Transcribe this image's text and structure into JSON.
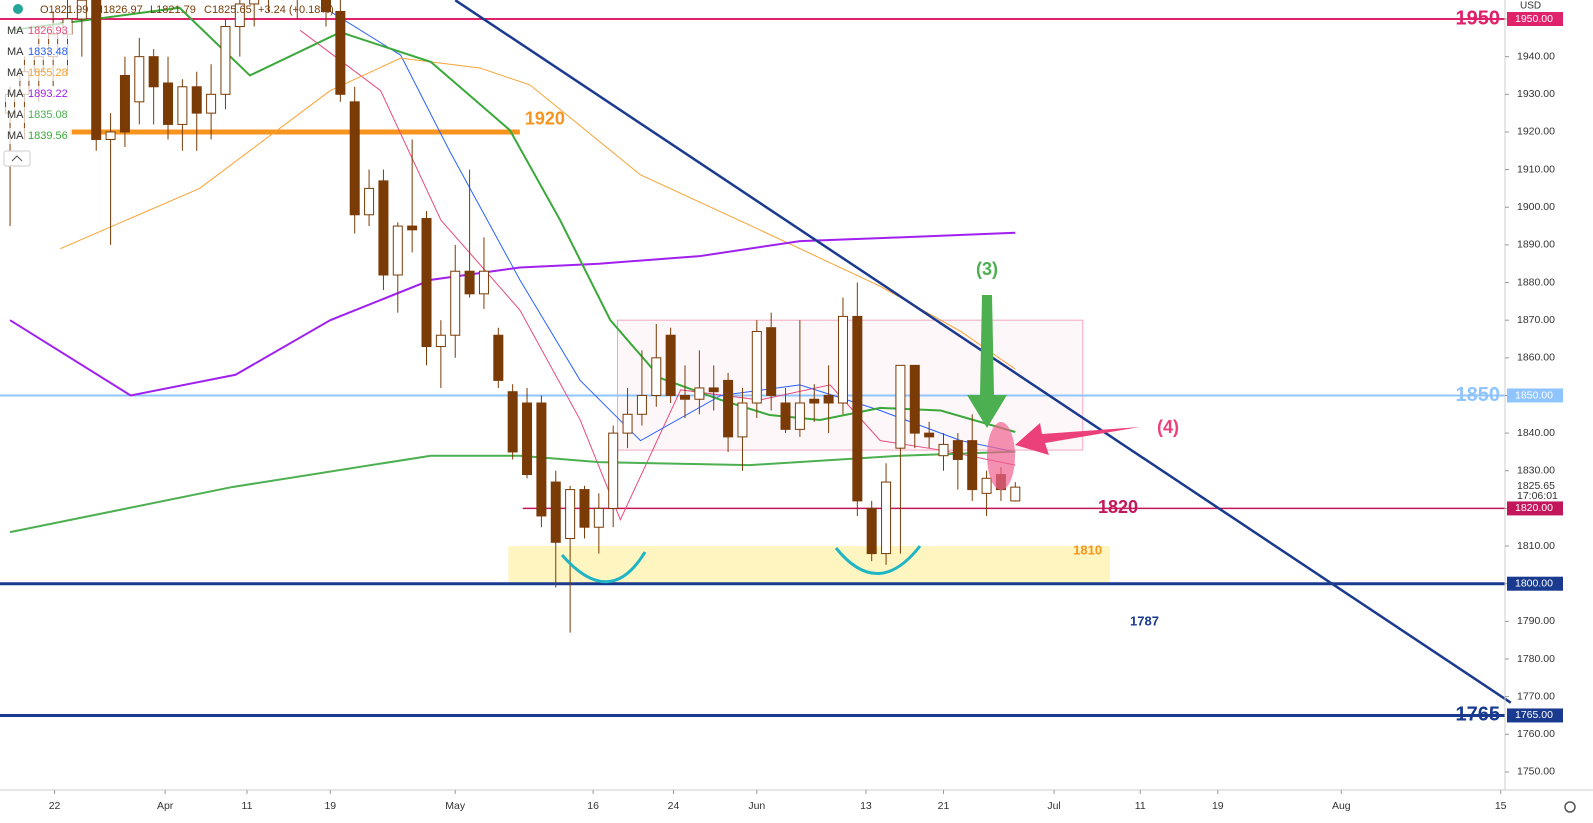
{
  "chart_data": {
    "type": "candlestick",
    "header": {
      "open": "O1821.99",
      "high": "H1826.97",
      "low": "L1821.79",
      "close": "C1825.65",
      "change": "+3.24 (+0.18%)"
    },
    "currency": "USD",
    "open": [
      1925,
      1930,
      1936,
      1940,
      1946,
      1950,
      1955,
      1918,
      1935,
      1928,
      1940,
      1933,
      1922,
      1932,
      1925,
      1930,
      1948,
      1954,
      1960,
      1964,
      1958,
      1966,
      1960,
      1952,
      1928,
      1898,
      1907,
      1882,
      1895,
      1897,
      1863,
      1866,
      1883,
      1877,
      1866,
      1851,
      1848,
      1848,
      1827,
      1812,
      1825,
      1815,
      1820,
      1840,
      1845,
      1850,
      1866,
      1850,
      1849,
      1852,
      1854,
      1839,
      1848,
      1868,
      1848,
      1841,
      1849,
      1850,
      1848,
      1871,
      1820,
      1808,
      1836,
      1858,
      1840,
      1834,
      1838,
      1838,
      1824,
      1829,
      1821.99
    ],
    "high": [
      1932,
      1940,
      1948,
      1952,
      1958,
      1962,
      1960,
      1925,
      1940,
      1945,
      1942,
      1940,
      1934,
      1936,
      1938,
      1950,
      1958,
      1965,
      1970,
      1972,
      1970,
      1975,
      1968,
      1960,
      1932,
      1910,
      1910,
      1896,
      1918,
      1899,
      1870,
      1890,
      1910,
      1892,
      1868,
      1853,
      1852,
      1850,
      1830,
      1826,
      1826,
      1824,
      1842,
      1852,
      1862,
      1869,
      1868,
      1858,
      1862,
      1858,
      1856,
      1852,
      1870,
      1872,
      1852,
      1870,
      1853,
      1858,
      1876,
      1880,
      1822,
      1832,
      1858,
      1858,
      1843,
      1840,
      1840,
      1845,
      1830,
      1831,
      1826.97
    ],
    "low": [
      1895,
      1918,
      1928,
      1932,
      1935,
      1940,
      1915,
      1890,
      1916,
      1922,
      1922,
      1918,
      1915,
      1915,
      1918,
      1926,
      1940,
      1948,
      1952,
      1955,
      1950,
      1955,
      1948,
      1928,
      1893,
      1895,
      1878,
      1872,
      1888,
      1858,
      1852,
      1860,
      1876,
      1873,
      1852,
      1833,
      1828,
      1815,
      1799,
      1787,
      1812,
      1808,
      1815,
      1836,
      1842,
      1847,
      1848,
      1844,
      1845,
      1846,
      1835,
      1830,
      1844,
      1846,
      1840,
      1839,
      1843,
      1840,
      1845,
      1818,
      1806,
      1805,
      1808,
      1836,
      1836,
      1830,
      1825,
      1822,
      1818,
      1822,
      1821.79
    ],
    "close": [
      1930,
      1936,
      1940,
      1946,
      1950,
      1955,
      1918,
      1920,
      1920,
      1940,
      1932,
      1922,
      1932,
      1925,
      1930,
      1948,
      1954,
      1960,
      1964,
      1958,
      1966,
      1960,
      1952,
      1930,
      1898,
      1905,
      1882,
      1895,
      1894,
      1863,
      1866,
      1883,
      1877,
      1883,
      1854,
      1835,
      1829,
      1818,
      1811,
      1825,
      1815,
      1820,
      1840,
      1845,
      1850,
      1860,
      1850,
      1849,
      1852,
      1851,
      1839,
      1848,
      1867,
      1850,
      1841,
      1848,
      1848,
      1848,
      1871,
      1822,
      1808,
      1827,
      1858,
      1840,
      1839,
      1837,
      1833,
      1825,
      1828,
      1825,
      1825.65
    ],
    "up_color": "#ffffff",
    "down_color": "#7a3b06",
    "wick_color": "#7a3b06",
    "series": [
      {
        "name": "MA",
        "legend_value": "1826.93",
        "color": "#e84a7f",
        "x": [
          20.2,
          25.8,
          30,
          35.5,
          39.7,
          42.5,
          46.7,
          52.2,
          57.1,
          60.6,
          64.8,
          70
        ],
        "values": [
          1947,
          1931,
          1896.6,
          1872.7,
          1843.5,
          1817,
          1851.5,
          1848.8,
          1852.8,
          1838,
          1835.5,
          1831.5
        ]
      },
      {
        "name": "MA",
        "legend_value": "1833.48",
        "color": "#2962ff",
        "x": [
          22.3,
          27.2,
          30.6,
          35.5,
          39.7,
          43.9,
          49.5,
          55,
          60.6,
          66.2,
          70
        ],
        "values": [
          1952,
          1940.4,
          1915,
          1880.7,
          1854,
          1838,
          1850,
          1852.8,
          1846,
          1838,
          1835
        ]
      },
      {
        "name": "MA",
        "legend_value": "1855.28",
        "color": "#f7a233",
        "x": [
          3.5,
          13.2,
          22.3,
          27.2,
          32.7,
          36.2,
          43.9,
          52.2,
          60.6,
          66.2,
          70
        ],
        "values": [
          1889,
          1905,
          1931,
          1939.6,
          1937,
          1932.5,
          1908.6,
          1894,
          1879,
          1867,
          1857
        ]
      },
      {
        "name": "MA",
        "legend_value": "1893.22",
        "color": "#a020f0",
        "x": [
          0,
          8.4,
          15.7,
          22.3,
          29.3,
          35.5,
          41,
          48,
          55,
          62,
          70
        ],
        "values": [
          1870,
          1850,
          1855.5,
          1870,
          1880.7,
          1884,
          1885,
          1887,
          1891,
          1892,
          1893.22
        ]
      },
      {
        "name": "MA",
        "legend_value": "1835.08",
        "color": "#4caf50",
        "x": [
          0,
          15.5,
          29.3,
          35.5,
          41,
          51.5,
          62,
          70
        ],
        "values": [
          1813.7,
          1825.7,
          1834,
          1834,
          1832.3,
          1831.5,
          1834,
          1835.08
        ]
      },
      {
        "name": "MA",
        "legend_value": "1839.56",
        "color": "#3aa83a",
        "x": [
          0,
          11.8,
          16.7,
          23,
          29.3,
          34.8,
          38.3,
          41.8,
          45.3,
          49.5,
          52.9,
          56.4,
          60.6,
          64.8,
          70
        ],
        "values": [
          1947,
          1953,
          1935,
          1946.5,
          1938.6,
          1920.5,
          1896.6,
          1870,
          1854.6,
          1848.8,
          1844.8,
          1843.5,
          1846.7,
          1846,
          1840.3
        ]
      }
    ],
    "levels": [
      {
        "value": 1950,
        "label": "1950",
        "badge": "1950.00",
        "color": "#e0226b",
        "from": -0.7,
        "width": 2
      },
      {
        "value": 1850,
        "label": "1850",
        "badge": "1850.00",
        "color": "#90c4ff",
        "from": -0.7,
        "width": 2
      },
      {
        "value": 1820,
        "label": "1820",
        "badge": "1820.00",
        "color": "#c2185b",
        "from": 35.7,
        "width": 1.5
      },
      {
        "value": 1800,
        "label": null,
        "badge": "1800.00",
        "color": "#1a3a8f",
        "from": -0.7,
        "width": 3
      },
      {
        "value": 1765,
        "label": "1765",
        "badge": "1765.00",
        "color": "#1a3a8f",
        "from": -0.7,
        "width": 3
      }
    ],
    "segment": {
      "label": "1920",
      "value": 1920,
      "from": 4.2,
      "to": 35.5,
      "color": "#f7941d"
    },
    "zone": {
      "label": "1810",
      "from": 34.7,
      "to": 76.6,
      "low": 1800,
      "high": 1810,
      "color": "#fff3b0"
    },
    "box": {
      "from": 42.3,
      "to": 74.7,
      "low": 1835.5,
      "high": 1870
    },
    "trendline": {
      "x": [
        31,
        104.5
      ],
      "values": [
        1955,
        1768.4
      ],
      "color": "#1a3a8f"
    },
    "annotations": [
      "1787",
      "(3)",
      "(4)"
    ],
    "last_price": {
      "value": 1825.65,
      "label": "1825.65",
      "time": "17:06:01"
    },
    "xlim": [
      -0.7,
      104.1
    ],
    "xticks": [
      {
        "value": 3.1,
        "label": "22"
      },
      {
        "value": 10.8,
        "label": "Apr"
      },
      {
        "value": 16.5,
        "label": "11"
      },
      {
        "value": 22.3,
        "label": "19"
      },
      {
        "value": 31.0,
        "label": "May"
      },
      {
        "value": 40.6,
        "label": "16"
      },
      {
        "value": 46.2,
        "label": "24"
      },
      {
        "value": 52.0,
        "label": "Jun"
      },
      {
        "value": 59.6,
        "label": "13"
      },
      {
        "value": 65.0,
        "label": "21"
      },
      {
        "value": 72.7,
        "label": "Jul"
      },
      {
        "value": 78.7,
        "label": "11"
      },
      {
        "value": 84.1,
        "label": "19"
      },
      {
        "value": 92.7,
        "label": "Aug"
      },
      {
        "value": 103.8,
        "label": "15"
      }
    ],
    "ylim": [
      1745.2,
      1955.05
    ],
    "yticks": [
      {
        "value": 1950,
        "label": "1950.00"
      },
      {
        "value": 1940,
        "label": "1940.00"
      },
      {
        "value": 1930,
        "label": "1930.00"
      },
      {
        "value": 1920,
        "label": "1920.00"
      },
      {
        "value": 1910,
        "label": "1910.00"
      },
      {
        "value": 1900,
        "label": "1900.00"
      },
      {
        "value": 1890,
        "label": "1890.00"
      },
      {
        "value": 1880,
        "label": "1880.00"
      },
      {
        "value": 1870,
        "label": "1870.00"
      },
      {
        "value": 1860,
        "label": "1860.00"
      },
      {
        "value": 1850,
        "label": "1850.00"
      },
      {
        "value": 1840,
        "label": "1840.00"
      },
      {
        "value": 1830,
        "label": "1830.00"
      },
      {
        "value": 1820,
        "label": "1820.00"
      },
      {
        "value": 1810,
        "label": "1810.00"
      },
      {
        "value": 1800,
        "label": "1800.00"
      },
      {
        "value": 1790,
        "label": "1790.00"
      },
      {
        "value": 1780,
        "label": "1780.00"
      },
      {
        "value": 1770,
        "label": "1770.00"
      },
      {
        "value": 1760,
        "label": "1760.00"
      },
      {
        "value": 1750,
        "label": "1750.00"
      }
    ]
  }
}
